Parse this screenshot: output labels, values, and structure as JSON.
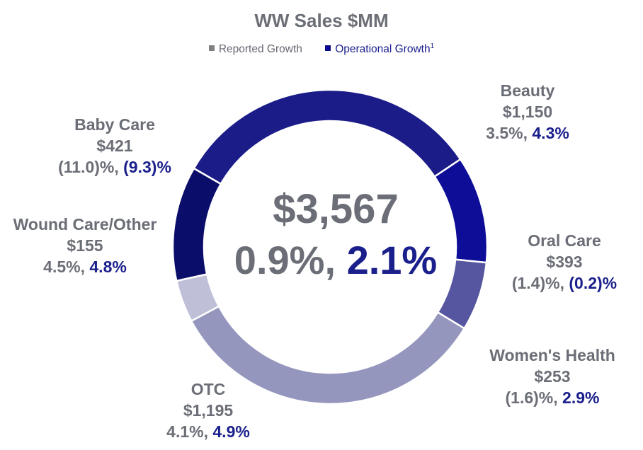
{
  "colors": {
    "reported": "#6b6e76",
    "operational": "#1a1f8c"
  },
  "chart_data": {
    "type": "pie",
    "title": "WW Sales $MM",
    "legend": [
      {
        "label": "Reported Growth",
        "color": "#808080"
      },
      {
        "label": "Operational Growth",
        "sup": "1",
        "color": "#0a0a8c"
      }
    ],
    "center": {
      "total": "$3,567",
      "reported": "0.9%,",
      "operational": "2.1%"
    },
    "slices": [
      {
        "name": "Beauty",
        "value": 1150,
        "value_label": "$1,150",
        "reported": "3.5%,",
        "operational": "4.3%",
        "color": "#1b1c88"
      },
      {
        "name": "Oral Care",
        "value": 393,
        "value_label": "$393",
        "reported": "(1.4)%,",
        "operational": "(0.2)%",
        "color": "#0d0d98"
      },
      {
        "name": "Women's Health",
        "value": 253,
        "value_label": "$253",
        "reported": "(1.6)%,",
        "operational": "2.9%",
        "color": "#5656a0"
      },
      {
        "name": "OTC",
        "value": 1195,
        "value_label": "$1,195",
        "reported": "4.1%,",
        "operational": "4.9%",
        "color": "#9496bd"
      },
      {
        "name": "Wound Care/Other",
        "value": 155,
        "value_label": "$155",
        "reported": "4.5%,",
        "operational": "4.8%",
        "color": "#bfc0d8"
      },
      {
        "name": "Baby Care",
        "value": 421,
        "value_label": "$421",
        "reported": "(11.0)%,",
        "operational": "(9.3)%",
        "color": "#0b0d6b"
      }
    ]
  }
}
